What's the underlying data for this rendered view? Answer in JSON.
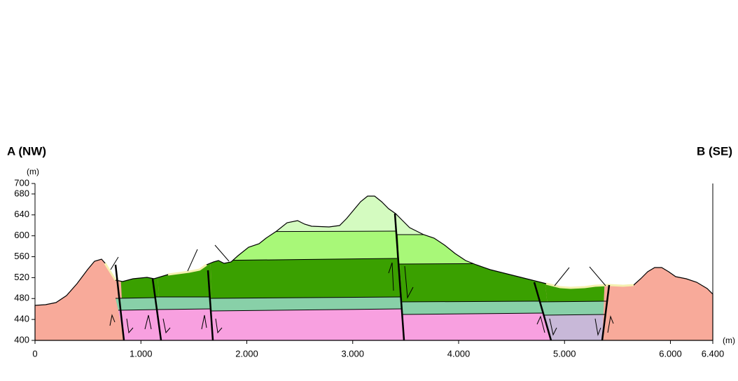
{
  "section": {
    "left_label": "A (NW)",
    "right_label": "B (SE)",
    "y_unit": "(m)",
    "x_unit": "(m)",
    "xlim": [
      0,
      6400
    ],
    "ylim": [
      400,
      700
    ],
    "xticks": [
      0,
      {
        "value": 1000,
        "label": "1.000"
      },
      {
        "value": 2000,
        "label": "2.000"
      },
      {
        "value": 3000,
        "label": "3.000"
      },
      {
        "value": 4000,
        "label": "4.000"
      },
      {
        "value": 5000,
        "label": "5.000"
      },
      {
        "value": 6000,
        "label": "6.000"
      },
      {
        "value": 6400,
        "label": "6.400"
      }
    ],
    "yticks": [
      400,
      440,
      480,
      520,
      560,
      600,
      640,
      680,
      700
    ]
  }
}
